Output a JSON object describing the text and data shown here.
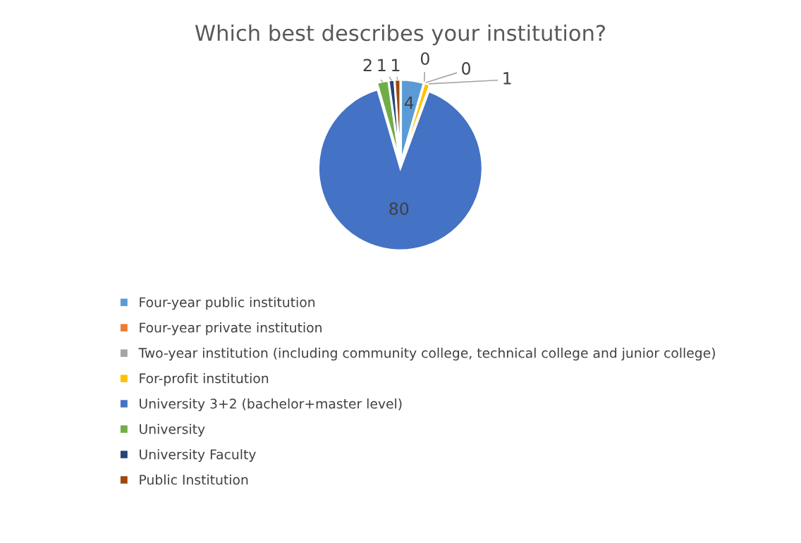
{
  "chart_data": {
    "type": "pie",
    "title": "Which best describes your institution?",
    "categories": [
      "Four-year public institution",
      "Four-year private institution",
      "Two-year institution (including community college, technical college and junior college)",
      "For-profit institution",
      "University 3+2 (bachelor+master level)",
      "University",
      "University Faculty",
      "Public Institution"
    ],
    "values": [
      4,
      0,
      0,
      1,
      80,
      2,
      1,
      1
    ],
    "colors": [
      "#5b9bd5",
      "#ed7d31",
      "#a5a5a5",
      "#ffc000",
      "#4472c4",
      "#70ad47",
      "#264478",
      "#9e480e"
    ],
    "value_labels": [
      "4",
      "0",
      "0",
      "1",
      "80",
      "2",
      "1",
      "1"
    ],
    "legend": "bottom"
  }
}
